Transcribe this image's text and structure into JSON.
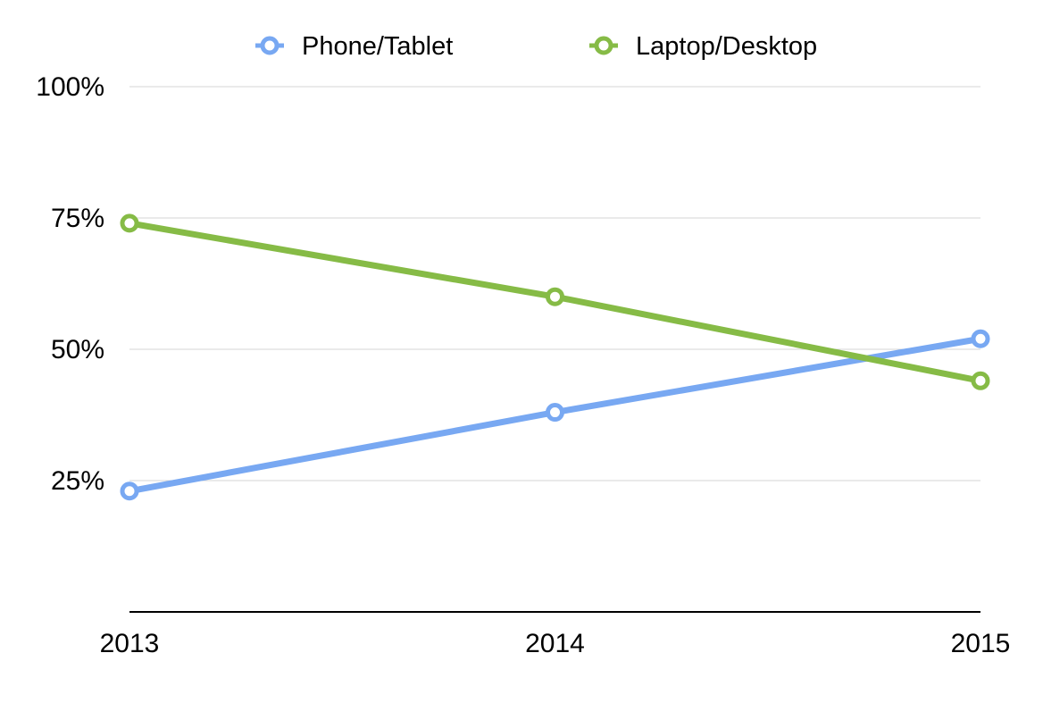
{
  "chart_data": {
    "type": "line",
    "title": "",
    "xlabel": "",
    "ylabel": "",
    "x": [
      "2013",
      "2014",
      "2015"
    ],
    "ylim": [
      0,
      100
    ],
    "yticks": [
      25,
      50,
      75,
      100
    ],
    "ytick_labels": [
      "25%",
      "50%",
      "75%",
      "100%"
    ],
    "grid": true,
    "legend_position": "top-center",
    "series": [
      {
        "name": "Phone/Tablet",
        "color": "#78a8f2",
        "values": [
          23,
          38,
          52
        ]
      },
      {
        "name": "Laptop/Desktop",
        "color": "#86bb46",
        "values": [
          74,
          60,
          44
        ]
      }
    ]
  }
}
